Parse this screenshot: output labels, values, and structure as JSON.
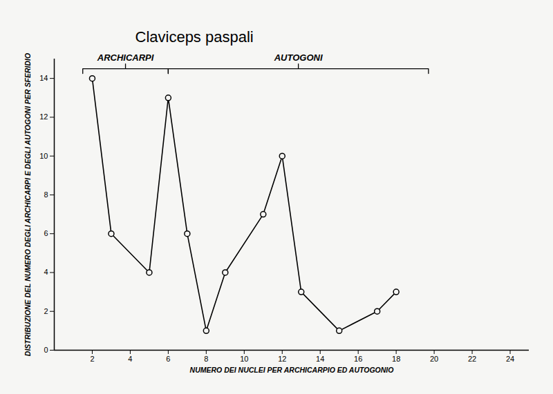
{
  "chart_data": {
    "type": "line",
    "title": "Claviceps paspali",
    "x_label": "NUMERO DEI NUCLEI PER ARCHICARPIO ED AUTOGONIO",
    "y_label": "DISTRIBUZIONE DEL NUMERO DEGLI ARCHICARPI E DEGLI AUTOGONI PER SFERIDIO",
    "x": [
      2,
      3,
      5,
      6,
      7,
      8,
      9,
      11,
      12,
      13,
      15,
      17,
      18
    ],
    "values": [
      14,
      6,
      4,
      13,
      6,
      1,
      4,
      7,
      10,
      3,
      1,
      2,
      3
    ],
    "xlim": [
      0,
      25
    ],
    "ylim": [
      0,
      15
    ],
    "xticks": [
      2,
      4,
      6,
      8,
      10,
      12,
      14,
      16,
      18,
      20,
      22,
      24
    ],
    "yticks": [
      0,
      2,
      4,
      6,
      8,
      10,
      12,
      14
    ],
    "color": "#000000",
    "marker": "circle",
    "grid": false,
    "annotations": [
      {
        "text": "ARCHICARPI",
        "x1": 1.5,
        "x2": 6,
        "y": 14.5
      },
      {
        "text": "AUTOGONI",
        "x1": 6,
        "x2": 19.7,
        "y": 14.5
      }
    ]
  }
}
